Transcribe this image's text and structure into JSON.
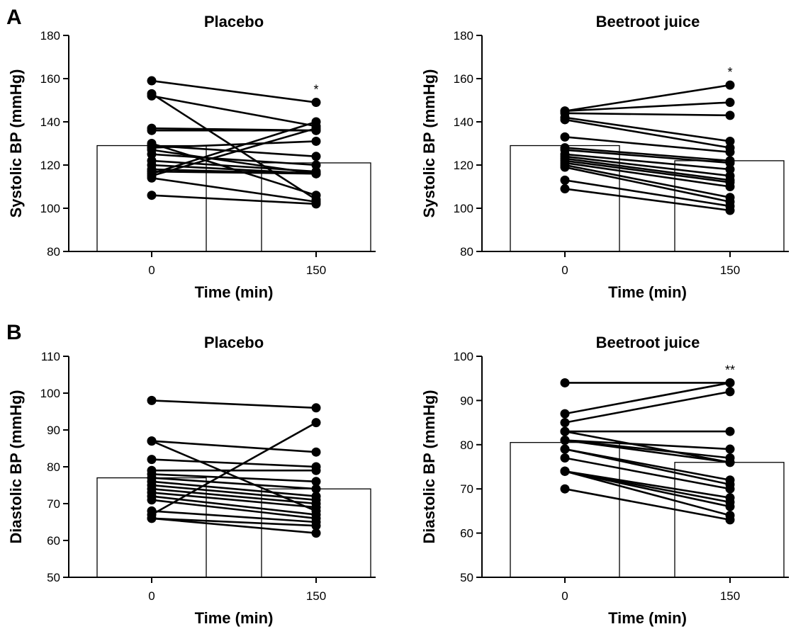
{
  "panel_labels": {
    "a": "A",
    "b": "B"
  },
  "chart_data": [
    {
      "type": "bar",
      "title": "Placebo",
      "xlabel": "Time (min)",
      "ylabel": "Systolic BP (mmHg)",
      "categories": [
        "0",
        "150"
      ],
      "values": [
        129,
        121
      ],
      "ylim": [
        80,
        180
      ],
      "yticks": [
        80,
        100,
        120,
        140,
        160,
        180
      ],
      "annotations": [
        "",
        "*"
      ],
      "paired_lines": [
        [
          159,
          149
        ],
        [
          153,
          104
        ],
        [
          152,
          138
        ],
        [
          137,
          136
        ],
        [
          136,
          136
        ],
        [
          130,
          106
        ],
        [
          129,
          124
        ],
        [
          128,
          131
        ],
        [
          127,
          116
        ],
        [
          125,
          120
        ],
        [
          122,
          117
        ],
        [
          120,
          116
        ],
        [
          118,
          116
        ],
        [
          117,
          116
        ],
        [
          116,
          140
        ],
        [
          115,
          137
        ],
        [
          114,
          103
        ],
        [
          106,
          102
        ]
      ]
    },
    {
      "type": "bar",
      "title": "Beetroot juice",
      "xlabel": "Time (min)",
      "ylabel": "Systolic BP (mmHg)",
      "categories": [
        "0",
        "150"
      ],
      "values": [
        129,
        122
      ],
      "ylim": [
        80,
        180
      ],
      "yticks": [
        80,
        100,
        120,
        140,
        160,
        180
      ],
      "annotations": [
        "",
        "*"
      ],
      "paired_lines": [
        [
          145,
          157
        ],
        [
          145,
          149
        ],
        [
          144,
          143
        ],
        [
          142,
          131
        ],
        [
          141,
          128
        ],
        [
          133,
          126
        ],
        [
          128,
          122
        ],
        [
          127,
          121
        ],
        [
          125,
          118
        ],
        [
          124,
          115
        ],
        [
          123,
          113
        ],
        [
          122,
          112
        ],
        [
          121,
          110
        ],
        [
          120,
          105
        ],
        [
          119,
          103
        ],
        [
          113,
          101
        ],
        [
          109,
          99
        ]
      ]
    },
    {
      "type": "bar",
      "title": "Placebo",
      "xlabel": "Time (min)",
      "ylabel": "Diastolic BP (mmHg)",
      "categories": [
        "0",
        "150"
      ],
      "values": [
        77,
        74
      ],
      "ylim": [
        50,
        110
      ],
      "yticks": [
        50,
        60,
        70,
        80,
        90,
        100,
        110
      ],
      "annotations": [
        "",
        ""
      ],
      "paired_lines": [
        [
          98,
          96
        ],
        [
          87,
          84
        ],
        [
          87,
          68
        ],
        [
          82,
          80
        ],
        [
          79,
          79
        ],
        [
          78,
          76
        ],
        [
          77,
          74
        ],
        [
          76,
          72
        ],
        [
          75,
          71
        ],
        [
          74,
          70
        ],
        [
          73,
          69
        ],
        [
          72,
          67
        ],
        [
          71,
          66
        ],
        [
          68,
          65
        ],
        [
          67,
          92
        ],
        [
          66,
          64
        ],
        [
          66,
          62
        ]
      ]
    },
    {
      "type": "bar",
      "title": "Beetroot juice",
      "xlabel": "Time (min)",
      "ylabel": "Diastolic BP (mmHg)",
      "categories": [
        "0",
        "150"
      ],
      "values": [
        80.5,
        76
      ],
      "ylim": [
        50,
        100
      ],
      "yticks": [
        50,
        60,
        70,
        80,
        90,
        100
      ],
      "annotations": [
        "",
        "**"
      ],
      "paired_lines": [
        [
          94,
          94
        ],
        [
          87,
          94
        ],
        [
          85,
          92
        ],
        [
          83,
          83
        ],
        [
          81,
          79
        ],
        [
          81,
          77
        ],
        [
          81,
          76
        ],
        [
          79,
          72
        ],
        [
          79,
          71
        ],
        [
          77,
          70
        ],
        [
          74,
          67
        ],
        [
          74,
          66
        ],
        [
          74,
          64
        ],
        [
          70,
          63
        ],
        [
          74,
          68
        ],
        [
          83,
          76
        ]
      ]
    }
  ]
}
